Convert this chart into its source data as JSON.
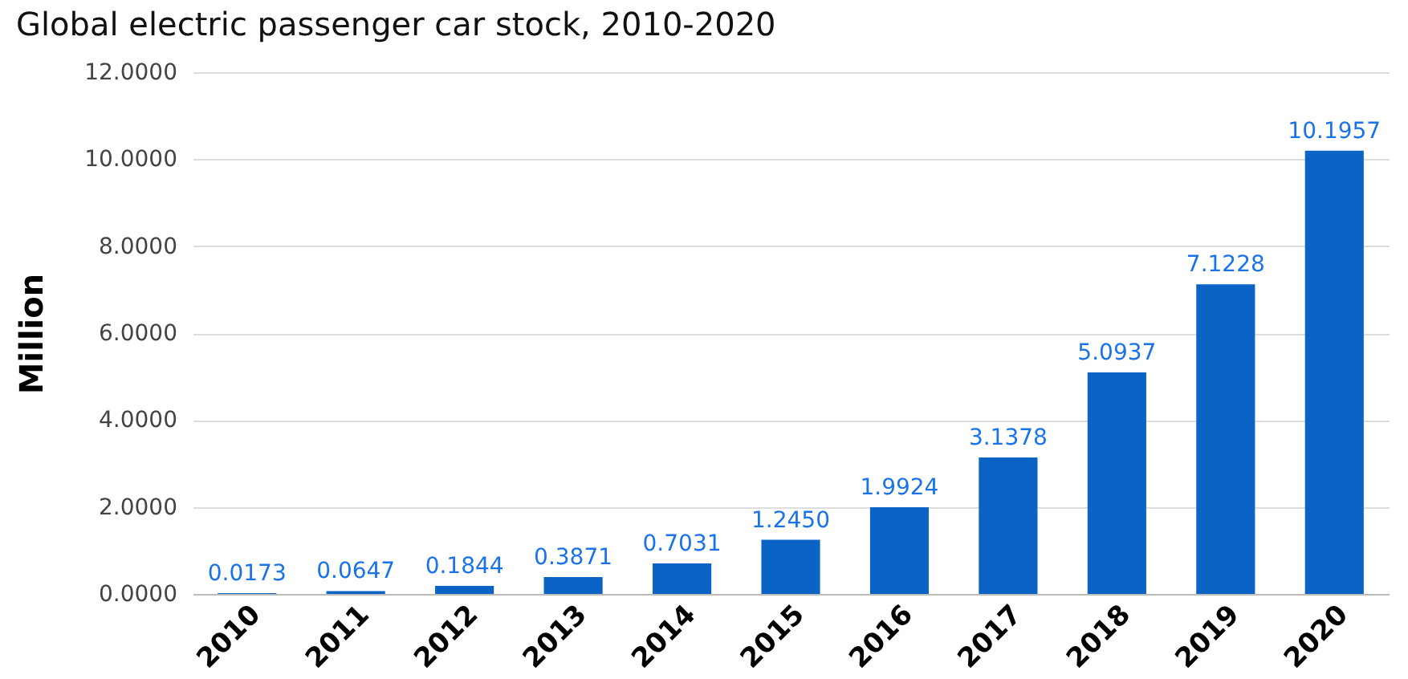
{
  "chart_data": {
    "type": "bar",
    "title": "Global electric passenger car stock, 2010-2020",
    "ylabel": "Million",
    "categories": [
      "2010",
      "2011",
      "2012",
      "2013",
      "2014",
      "2015",
      "2016",
      "2017",
      "2018",
      "2019",
      "2020"
    ],
    "values": [
      0.0173,
      0.0647,
      0.1844,
      0.3871,
      0.7031,
      1.245,
      1.9924,
      3.1378,
      5.0937,
      7.1228,
      10.1957
    ],
    "value_labels": [
      "0.0173",
      "0.0647",
      "0.1844",
      "0.3871",
      "0.7031",
      "1.2450",
      "1.9924",
      "3.1378",
      "5.0937",
      "7.1228",
      "10.1957"
    ],
    "color": "#0b63c6",
    "ylim": [
      0,
      12
    ],
    "yticks": [
      {
        "value": 0,
        "label": "0.0000"
      },
      {
        "value": 2,
        "label": "2.0000"
      },
      {
        "value": 4,
        "label": "4.0000"
      },
      {
        "value": 6,
        "label": "6.0000"
      },
      {
        "value": 8,
        "label": "8.0000"
      },
      {
        "value": 10,
        "label": "10.0000"
      },
      {
        "value": 12,
        "label": "12.0000"
      }
    ],
    "grid": "y"
  }
}
